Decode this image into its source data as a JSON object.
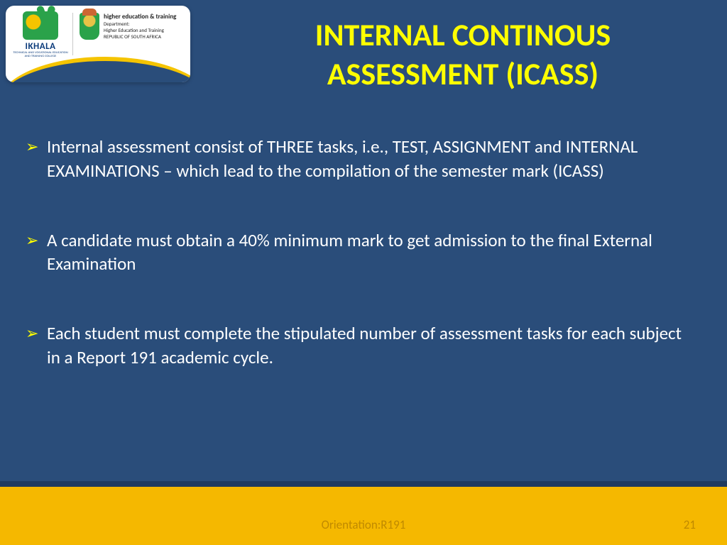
{
  "colors": {
    "background": "#2a4d7a",
    "title": "#ffff00",
    "body_text": "#ffffff",
    "bullet_arrow": "#ffff00",
    "footer_bar": "#f5b800",
    "footer_stripe": "#1f3a5f",
    "footer_text": "#c08a00",
    "logo_card_bg": "#ffffff"
  },
  "logo": {
    "college_name": "IKHALA",
    "college_sub": "TECHNICAL AND VOCATIONAL EDUCATION AND TRAINING COLLEGE",
    "dept_line1": "higher education & training",
    "dept_line2": "Department:",
    "dept_line3": "Higher Education and Training",
    "dept_line4": "REPUBLIC OF SOUTH AFRICA"
  },
  "title": {
    "line1": "INTERNAL CONTINOUS",
    "line2": "ASSESSMENT (ICASS)",
    "font_size": 44,
    "font_weight": 700
  },
  "bullets": [
    "Internal assessment consist of THREE tasks, i.e., TEST, ASSIGNMENT and INTERNAL EXAMINATIONS – which lead to the compilation of the semester mark (ICASS)",
    "A candidate must obtain a 40% minimum mark to get admission to the final External Examination",
    "Each student must complete the stipulated number of assessment tasks for each subject in a Report 191 academic cycle."
  ],
  "bullet_style": {
    "font_size": 25,
    "arrow_glyph": "➢"
  },
  "footer": {
    "center_text": "Orientation:R191",
    "page_number": "21"
  }
}
